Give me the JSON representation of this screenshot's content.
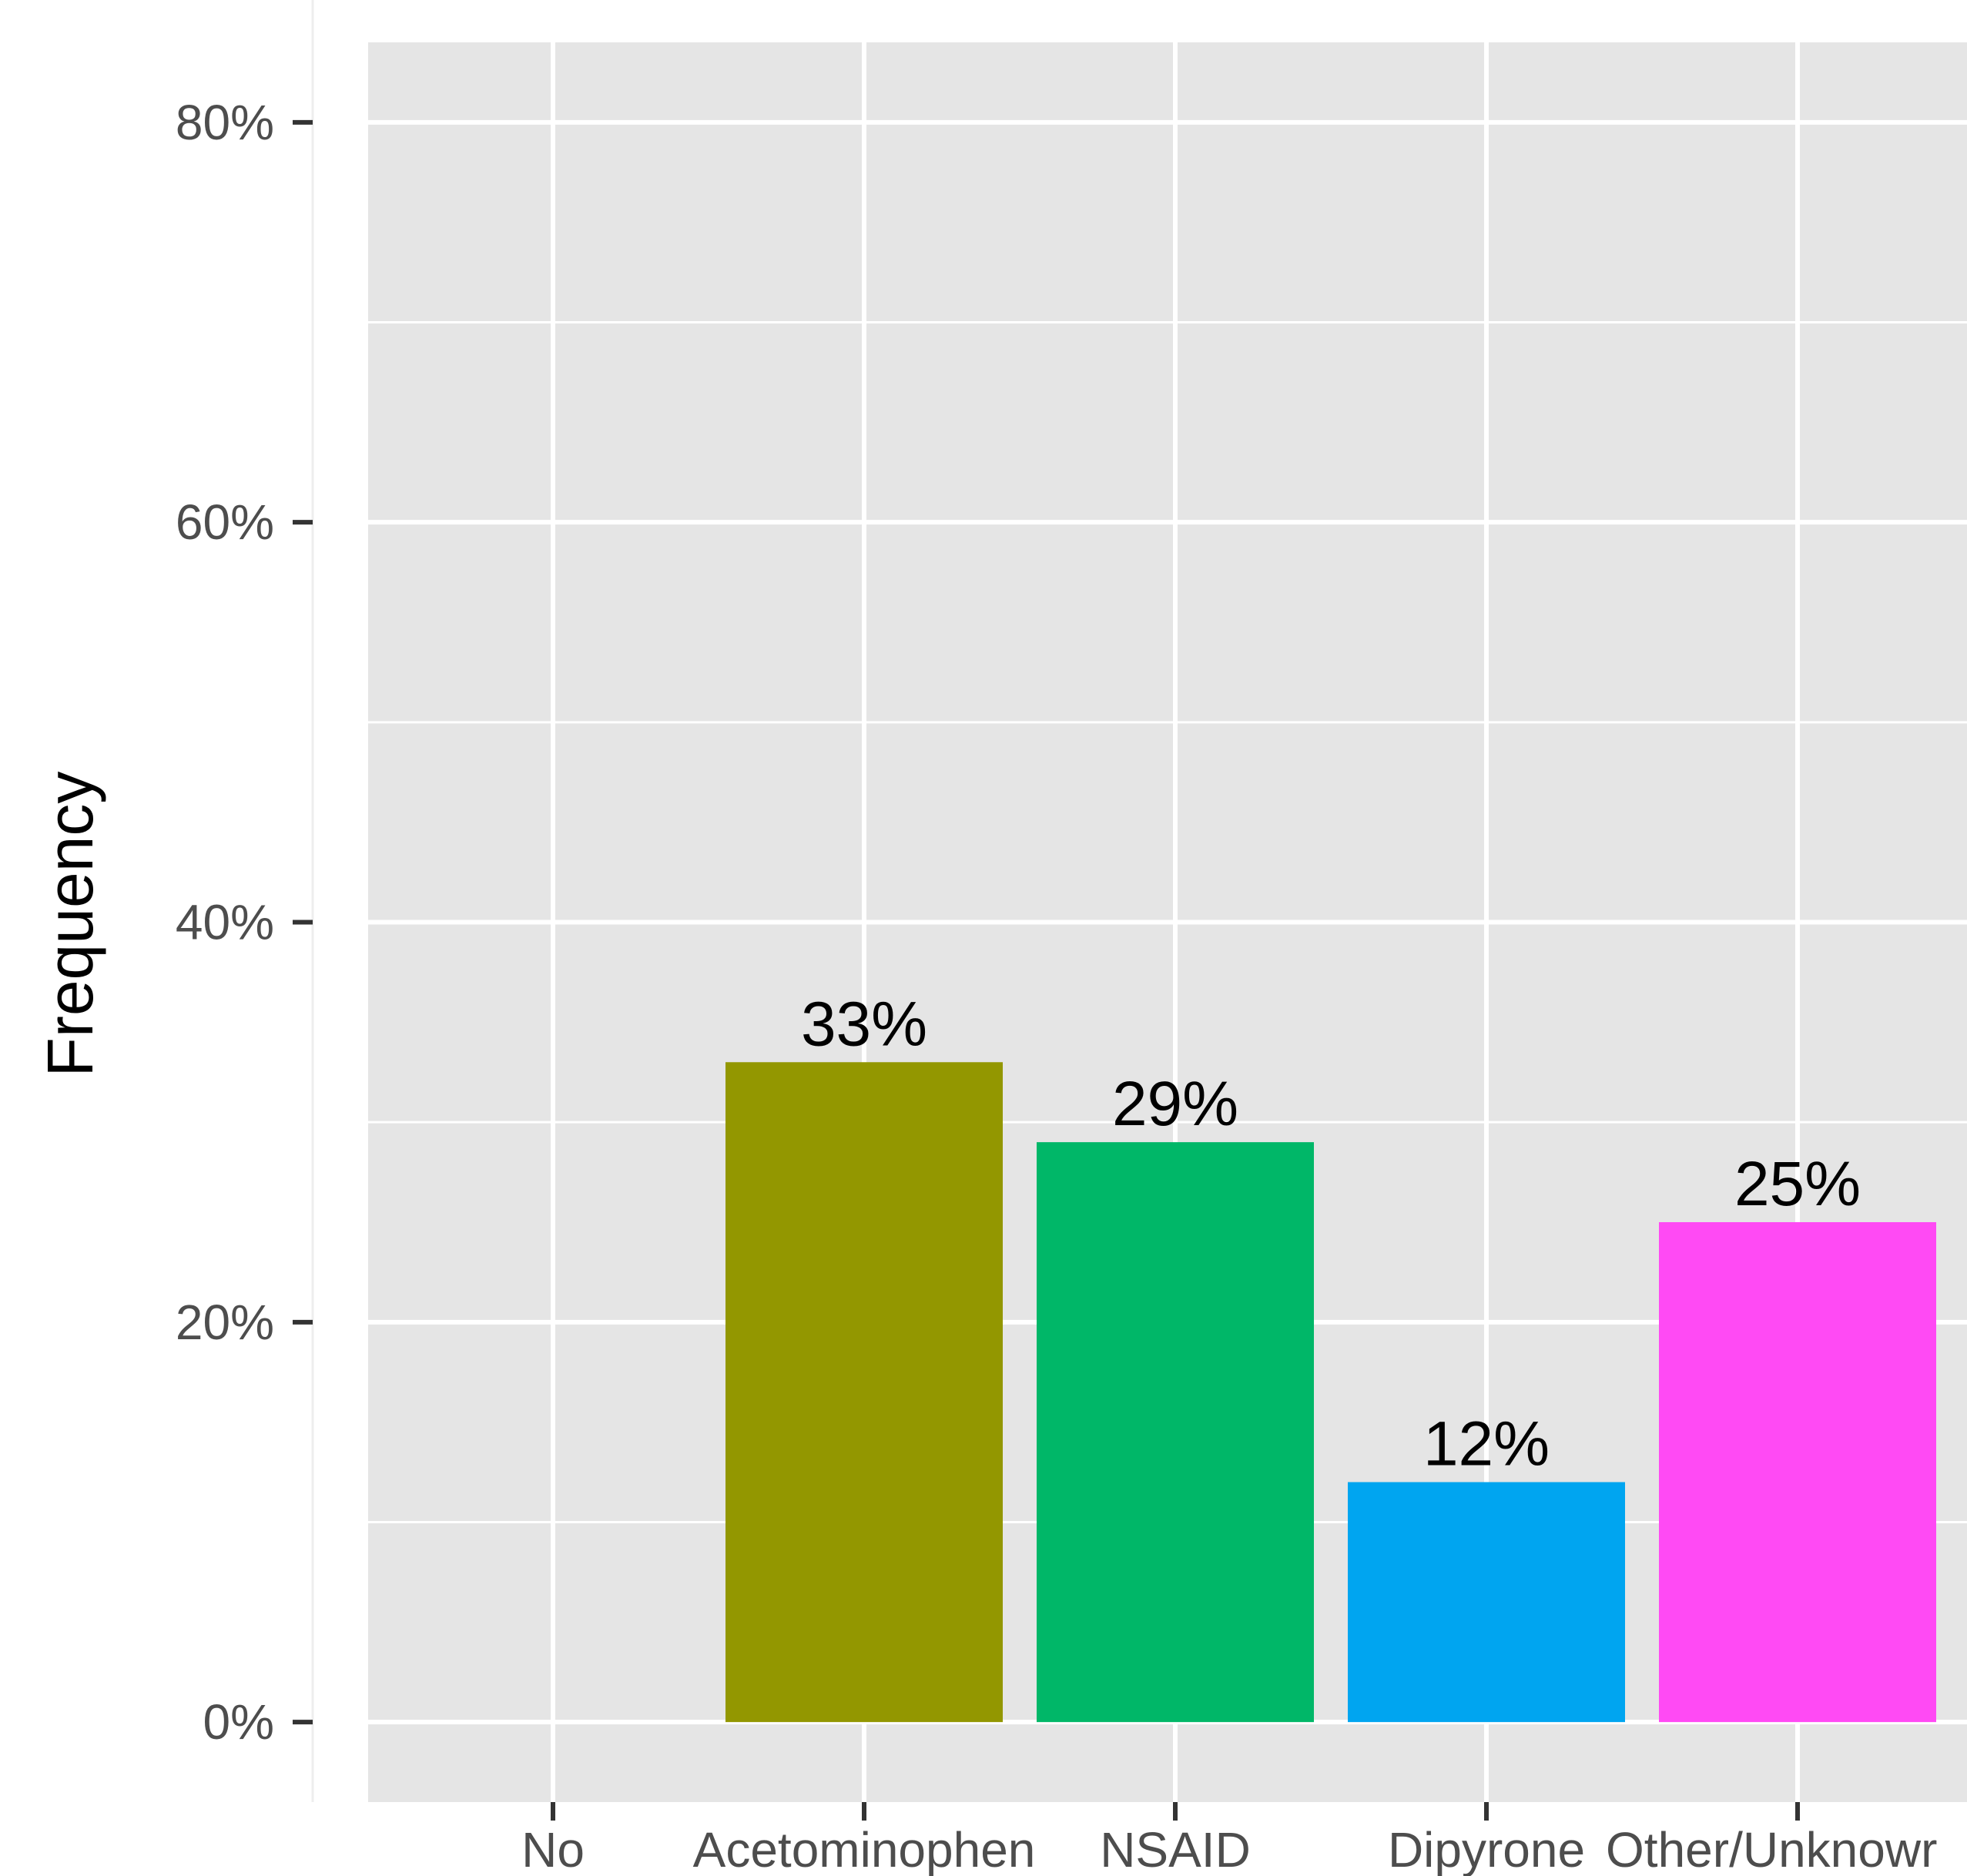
{
  "chart_data": {
    "type": "bar",
    "title": "",
    "xlabel": "",
    "ylabel": "Frequency",
    "categories": [
      "No",
      "Acetominophen",
      "NSAID",
      "Dipyrone",
      "Other/Unknown"
    ],
    "category_labels_displayed": [
      "No",
      "Acetominophen",
      "NSAID",
      "Dipyrone",
      "Other/Unknowr"
    ],
    "values": [
      0,
      33,
      29,
      12,
      25
    ],
    "data_labels": [
      "",
      "33%",
      "29%",
      "12%",
      "25%"
    ],
    "bar_colors": [
      "#F8766D",
      "#939700",
      "#00B768",
      "#00A5F0",
      "#FF4AF4"
    ],
    "ylim": [
      -4,
      84
    ],
    "yticks": [
      0,
      20,
      40,
      60,
      80
    ],
    "ytick_labels": [
      "0%",
      "20%",
      "40%",
      "60%",
      "80%"
    ],
    "grid": true,
    "legend": "none",
    "panel_background": "#E5E5E5",
    "grid_color": "#FFFFFF",
    "tick_label_color": "#4D4D4D",
    "label_color": "#000000"
  }
}
